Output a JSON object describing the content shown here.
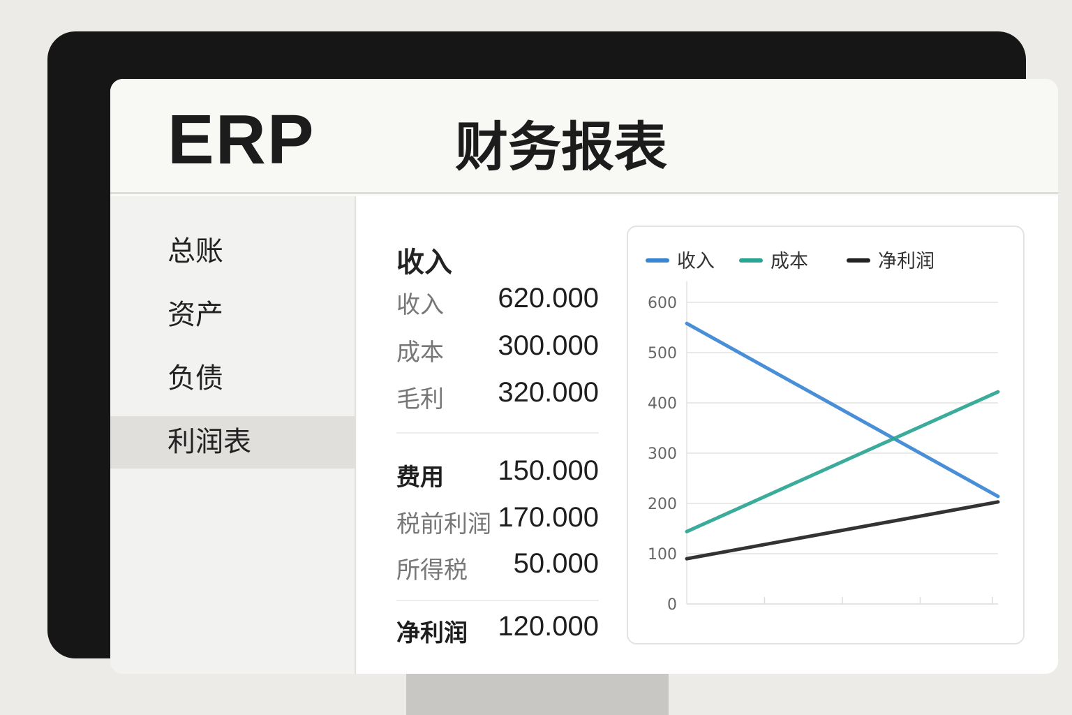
{
  "header": {
    "logo": "ERP",
    "title": "财务报表"
  },
  "sidebar": {
    "items": [
      {
        "label": "总账",
        "active": false
      },
      {
        "label": "资产",
        "active": false
      },
      {
        "label": "负债",
        "active": false
      },
      {
        "label": "利润表",
        "active": true
      }
    ]
  },
  "report": {
    "section_title": "收入",
    "rows": [
      {
        "label": "收入",
        "value": "620.000"
      },
      {
        "label": "成本",
        "value": "300.000"
      },
      {
        "label": "毛利",
        "value": "320.000"
      },
      {
        "label": "费用",
        "value": "150.000"
      },
      {
        "label": "税前利润",
        "value": "170.000"
      },
      {
        "label": "所得税",
        "value": "50.000"
      },
      {
        "label": "净利润",
        "value": "120.000"
      }
    ]
  },
  "chart_data": {
    "type": "line",
    "x": [
      0,
      4
    ],
    "xlim": [
      0,
      4
    ],
    "ylim": [
      0,
      600
    ],
    "yticks": [
      "0",
      "100",
      "200",
      "300",
      "400",
      "500",
      "600"
    ],
    "grid": true,
    "legend_placement": "top",
    "series": [
      {
        "name": "收入",
        "color": "#3a86d4",
        "values": [
          558,
          214
        ]
      },
      {
        "name": "成本",
        "color": "#2aa593",
        "values": [
          144,
          422
        ]
      },
      {
        "name": "净利润",
        "color": "#222222",
        "values": [
          90,
          203
        ]
      }
    ]
  }
}
